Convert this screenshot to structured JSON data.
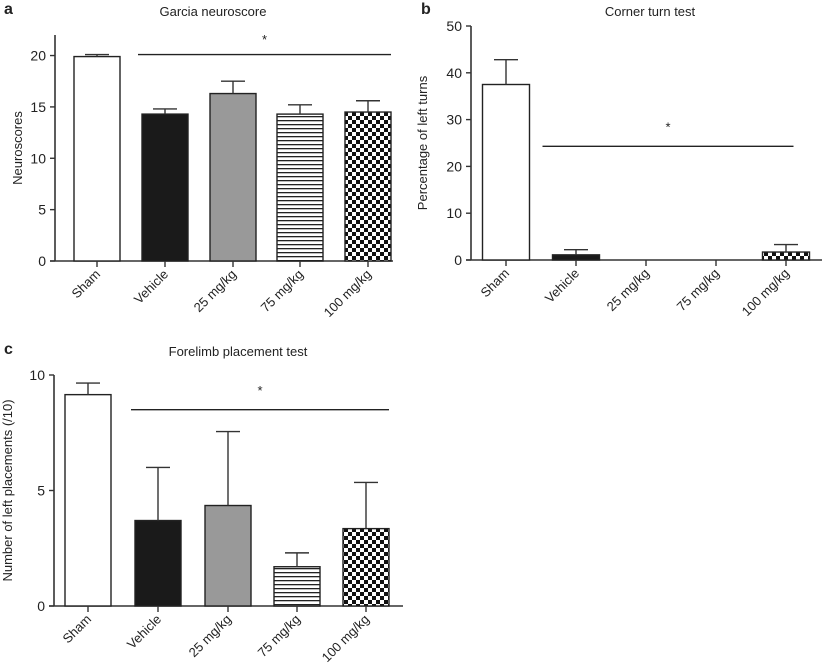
{
  "chart_data": [
    {
      "panel": "a",
      "type": "bar",
      "title": "Garcia neuroscore",
      "xlabel": "",
      "ylabel": "Neuroscores",
      "ylim": [
        0,
        22
      ],
      "yticks": [
        0,
        5,
        10,
        15,
        20
      ],
      "categories": [
        "Sham",
        "Vehicle",
        "25 mg/kg",
        "75 mg/kg",
        "100 mg/kg"
      ],
      "values": [
        19.9,
        14.3,
        16.3,
        14.3,
        14.5
      ],
      "errors": [
        0.2,
        0.5,
        1.2,
        0.9,
        1.1
      ],
      "fills": [
        "white",
        "black",
        "gray",
        "hstripe",
        "checker"
      ],
      "significance": {
        "label": "*",
        "from": 1,
        "to": 4,
        "y": 20.1,
        "star_y": 21.6
      },
      "grid": false
    },
    {
      "panel": "b",
      "type": "bar",
      "title": "Corner turn test",
      "xlabel": "",
      "ylabel": "Percentage of left turns",
      "ylim": [
        0,
        50
      ],
      "yticks": [
        0,
        10,
        20,
        30,
        40,
        50
      ],
      "categories": [
        "Sham",
        "Vehicle",
        "25 mg/kg",
        "75 mg/kg",
        "100 mg/kg"
      ],
      "values": [
        37.5,
        1.1,
        0,
        0,
        1.7
      ],
      "errors": [
        5.3,
        1.1,
        0,
        0,
        1.6
      ],
      "fills": [
        "white",
        "black",
        "gray",
        "hstripe",
        "checker"
      ],
      "significance": {
        "label": "*",
        "from": 1,
        "to": 4,
        "y": 24.3,
        "star_y": 28.5
      },
      "grid": false
    },
    {
      "panel": "c",
      "type": "bar",
      "title": "Forelimb placement test",
      "xlabel": "",
      "ylabel": "Number of left placements (/10)",
      "ylim": [
        0,
        10
      ],
      "yticks": [
        0,
        5,
        10
      ],
      "categories": [
        "Sham",
        "Vehicle",
        "25 mg/kg",
        "75 mg/kg",
        "100 mg/kg"
      ],
      "values": [
        9.15,
        3.7,
        4.35,
        1.7,
        3.35
      ],
      "errors": [
        0.5,
        2.3,
        3.2,
        0.6,
        2.0
      ],
      "fills": [
        "white",
        "black",
        "gray",
        "hstripe",
        "checker"
      ],
      "significance": {
        "label": "*",
        "from": 1,
        "to": 4,
        "y": 8.5,
        "star_y": 9.35
      },
      "grid": false
    }
  ],
  "colors": {
    "black": "#1a1a1a",
    "gray": "#999999",
    "axis": "#333333"
  }
}
